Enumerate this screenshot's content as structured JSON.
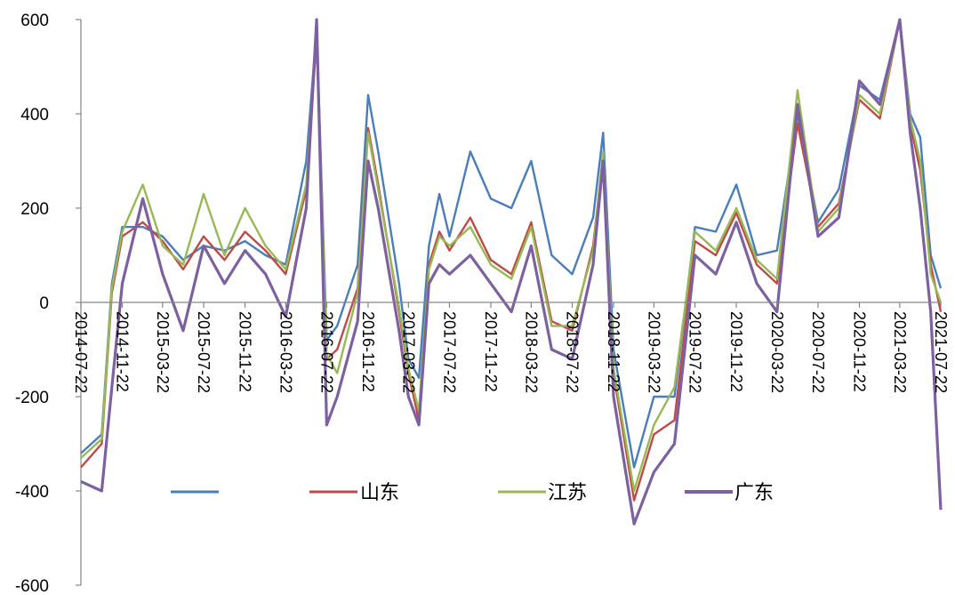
{
  "chart_data": {
    "type": "line",
    "title": "",
    "xlabel": "",
    "ylabel": "",
    "ylim": [
      -600,
      600
    ],
    "yticks": [
      -600,
      -400,
      -200,
      0,
      200,
      400,
      600
    ],
    "xlim": [
      "2014-07-22",
      "2021-07-22"
    ],
    "x_tick_labels": [
      "2014-07-22",
      "2014-11-22",
      "2015-03-22",
      "2015-07-22",
      "2015-11-22",
      "2016-03-22",
      "2016-07-22",
      "2016-11-22",
      "2017-03-22",
      "2017-07-22",
      "2017-11-22",
      "2018-03-22",
      "2018-07-22",
      "2018-11-22",
      "2019-03-22",
      "2019-07-22",
      "2019-11-22",
      "2020-03-22",
      "2020-07-22",
      "2020-11-22",
      "2021-03-22",
      "2021-07-22"
    ],
    "grid": false,
    "legend_position": "bottom",
    "series": [
      {
        "name": "",
        "color": "#4a7ebb",
        "x": [
          "2014-07-22",
          "2014-09-22",
          "2014-10-22",
          "2014-11-22",
          "2015-01-22",
          "2015-03-22",
          "2015-05-22",
          "2015-07-22",
          "2015-09-22",
          "2015-11-22",
          "2016-01-22",
          "2016-03-22",
          "2016-05-22",
          "2016-06-22",
          "2016-07-22",
          "2016-08-22",
          "2016-10-22",
          "2016-11-22",
          "2016-12-22",
          "2017-02-22",
          "2017-03-22",
          "2017-04-22",
          "2017-05-22",
          "2017-06-22",
          "2017-07-22",
          "2017-09-22",
          "2017-11-22",
          "2018-01-22",
          "2018-03-22",
          "2018-05-22",
          "2018-07-22",
          "2018-09-22",
          "2018-10-22",
          "2018-11-22",
          "2019-01-22",
          "2019-03-22",
          "2019-05-22",
          "2019-07-22",
          "2019-09-22",
          "2019-11-22",
          "2020-01-22",
          "2020-03-22",
          "2020-05-22",
          "2020-07-22",
          "2020-09-22",
          "2020-11-22",
          "2021-01-22",
          "2021-03-22",
          "2021-04-22",
          "2021-05-22",
          "2021-06-22",
          "2021-07-22"
        ],
        "values": [
          -320,
          -280,
          40,
          160,
          160,
          140,
          90,
          120,
          110,
          130,
          100,
          80,
          300,
          580,
          -80,
          -50,
          80,
          440,
          320,
          40,
          -120,
          -160,
          120,
          230,
          140,
          320,
          220,
          200,
          300,
          100,
          60,
          180,
          360,
          -100,
          -350,
          -200,
          -200,
          160,
          150,
          250,
          100,
          110,
          400,
          170,
          240,
          460,
          430,
          600,
          400,
          350,
          100,
          30
        ]
      },
      {
        "name": "山东",
        "color": "#be4b48",
        "x": [
          "2014-07-22",
          "2014-09-22",
          "2014-10-22",
          "2014-11-22",
          "2015-01-22",
          "2015-03-22",
          "2015-05-22",
          "2015-07-22",
          "2015-09-22",
          "2015-11-22",
          "2016-01-22",
          "2016-03-22",
          "2016-05-22",
          "2016-06-22",
          "2016-07-22",
          "2016-08-22",
          "2016-10-22",
          "2016-11-22",
          "2016-12-22",
          "2017-02-22",
          "2017-03-22",
          "2017-04-22",
          "2017-05-22",
          "2017-06-22",
          "2017-07-22",
          "2017-09-22",
          "2017-11-22",
          "2018-01-22",
          "2018-03-22",
          "2018-05-22",
          "2018-07-22",
          "2018-09-22",
          "2018-10-22",
          "2018-11-22",
          "2019-01-22",
          "2019-03-22",
          "2019-05-22",
          "2019-07-22",
          "2019-09-22",
          "2019-11-22",
          "2020-01-22",
          "2020-03-22",
          "2020-05-22",
          "2020-07-22",
          "2020-09-22",
          "2020-11-22",
          "2021-01-22",
          "2021-03-22",
          "2021-04-22",
          "2021-05-22",
          "2021-06-22",
          "2021-07-22"
        ],
        "values": [
          -350,
          -300,
          20,
          140,
          170,
          130,
          70,
          140,
          90,
          150,
          110,
          60,
          240,
          560,
          -120,
          -100,
          30,
          370,
          250,
          -20,
          -150,
          -250,
          80,
          150,
          110,
          180,
          90,
          60,
          170,
          -40,
          -60,
          120,
          310,
          -150,
          -420,
          -280,
          -250,
          130,
          100,
          190,
          80,
          40,
          380,
          160,
          210,
          430,
          390,
          600,
          380,
          280,
          80,
          -20
        ]
      },
      {
        "name": "江苏",
        "color": "#98b954",
        "x": [
          "2014-07-22",
          "2014-09-22",
          "2014-10-22",
          "2014-11-22",
          "2015-01-22",
          "2015-03-22",
          "2015-05-22",
          "2015-07-22",
          "2015-09-22",
          "2015-11-22",
          "2016-01-22",
          "2016-03-22",
          "2016-05-22",
          "2016-06-22",
          "2016-07-22",
          "2016-08-22",
          "2016-10-22",
          "2016-11-22",
          "2016-12-22",
          "2017-02-22",
          "2017-03-22",
          "2017-04-22",
          "2017-05-22",
          "2017-06-22",
          "2017-07-22",
          "2017-09-22",
          "2017-11-22",
          "2018-01-22",
          "2018-03-22",
          "2018-05-22",
          "2018-07-22",
          "2018-09-22",
          "2018-10-22",
          "2018-11-22",
          "2019-01-22",
          "2019-03-22",
          "2019-05-22",
          "2019-07-22",
          "2019-09-22",
          "2019-11-22",
          "2020-01-22",
          "2020-03-22",
          "2020-05-22",
          "2020-07-22",
          "2020-09-22",
          "2020-11-22",
          "2021-01-22",
          "2021-03-22",
          "2021-04-22",
          "2021-05-22",
          "2021-06-22",
          "2021-07-22"
        ],
        "values": [
          -330,
          -290,
          30,
          150,
          250,
          120,
          80,
          230,
          100,
          200,
          120,
          70,
          250,
          570,
          -110,
          -150,
          20,
          360,
          240,
          -10,
          -140,
          -230,
          70,
          140,
          120,
          160,
          80,
          50,
          160,
          -50,
          -50,
          110,
          320,
          -140,
          -400,
          -260,
          -180,
          150,
          110,
          200,
          90,
          50,
          450,
          150,
          200,
          440,
          400,
          600,
          390,
          300,
          60,
          0
        ]
      },
      {
        "name": "广东",
        "color": "#7d60a0",
        "x": [
          "2014-07-22",
          "2014-09-22",
          "2014-10-22",
          "2014-11-22",
          "2015-01-22",
          "2015-03-22",
          "2015-05-22",
          "2015-07-22",
          "2015-09-22",
          "2015-11-22",
          "2016-01-22",
          "2016-03-22",
          "2016-05-22",
          "2016-06-22",
          "2016-07-22",
          "2016-08-22",
          "2016-10-22",
          "2016-11-22",
          "2016-12-22",
          "2017-02-22",
          "2017-03-22",
          "2017-04-22",
          "2017-05-22",
          "2017-06-22",
          "2017-07-22",
          "2017-09-22",
          "2017-11-22",
          "2018-01-22",
          "2018-03-22",
          "2018-05-22",
          "2018-07-22",
          "2018-09-22",
          "2018-10-22",
          "2018-11-22",
          "2019-01-22",
          "2019-03-22",
          "2019-05-22",
          "2019-07-22",
          "2019-09-22",
          "2019-11-22",
          "2020-01-22",
          "2020-03-22",
          "2020-05-22",
          "2020-07-22",
          "2020-09-22",
          "2020-11-22",
          "2021-01-22",
          "2021-03-22",
          "2021-04-22",
          "2021-05-22",
          "2021-06-22",
          "2021-07-22"
        ],
        "values": [
          -380,
          -400,
          -180,
          40,
          220,
          60,
          -60,
          120,
          40,
          110,
          60,
          -30,
          200,
          600,
          -260,
          -200,
          -40,
          300,
          200,
          -60,
          -200,
          -260,
          40,
          80,
          60,
          100,
          40,
          -20,
          120,
          -100,
          -120,
          80,
          300,
          -200,
          -470,
          -360,
          -300,
          100,
          60,
          170,
          40,
          -20,
          420,
          140,
          180,
          470,
          420,
          600,
          360,
          200,
          -20,
          -440
        ]
      }
    ]
  }
}
